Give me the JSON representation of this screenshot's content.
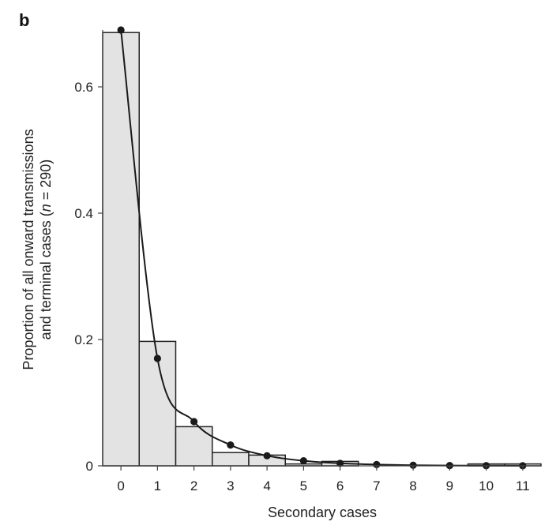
{
  "panel_label": "b",
  "chart_data": {
    "type": "bar",
    "title": "",
    "xlabel": "Secondary cases",
    "ylabel_line1": "Proportion of all onward transmissions",
    "ylabel_line2_prefix": "and terminal cases (",
    "ylabel_line2_italic": "n",
    "ylabel_line2_suffix": " = 290)",
    "categories": [
      "0",
      "1",
      "2",
      "3",
      "4",
      "5",
      "6",
      "7",
      "8",
      "9",
      "10",
      "11"
    ],
    "values": [
      0.686,
      0.197,
      0.062,
      0.021,
      0.017,
      0.003,
      0.007,
      0.0,
      0.0,
      0.0,
      0.003,
      0.003
    ],
    "fit_points": [
      0.69,
      0.17,
      0.07,
      0.033,
      0.016,
      0.008,
      0.004,
      0.002,
      0.001,
      0.0005,
      0.0003,
      0.0002
    ],
    "fit_curve": [
      0.69,
      0.17,
      0.07,
      0.033,
      0.016,
      0.008,
      0.004,
      0.002,
      0.001,
      0.0005,
      0.0003,
      0.0002
    ],
    "xlim": [
      -0.5,
      11.5
    ],
    "ylim": [
      0,
      0.69
    ],
    "yticks": [
      0,
      0.2,
      0.4,
      0.6
    ],
    "ytick_labels": [
      "0",
      "0.2",
      "0.4",
      "0.6"
    ],
    "grid": false,
    "colors": {
      "bar_fill": "#e3e3e3",
      "bar_stroke": "#222222",
      "curve": "#1a1a1a",
      "point": "#1a1a1a",
      "axis": "#444444"
    }
  }
}
